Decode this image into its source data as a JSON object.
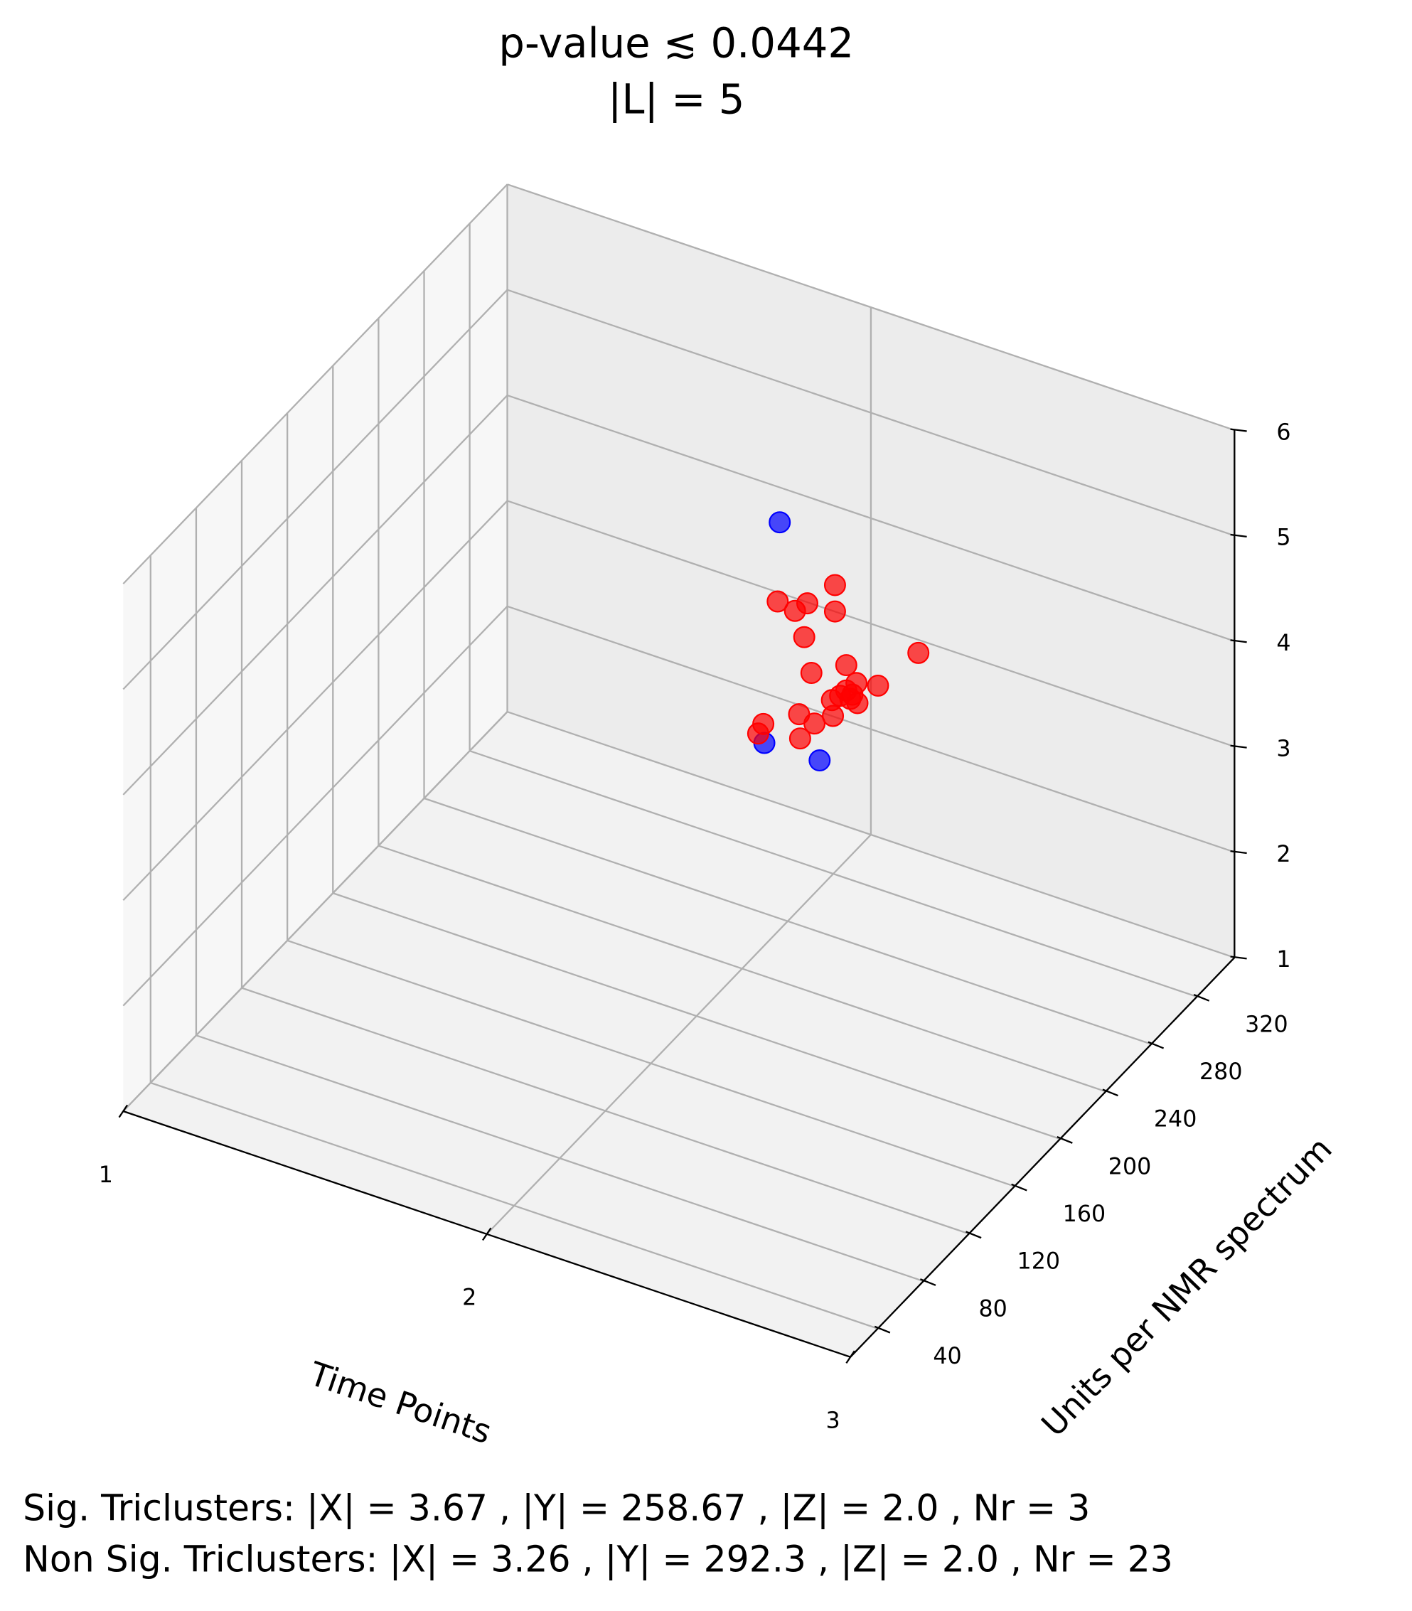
{
  "chart_data": {
    "type": "scatter3d",
    "title": "p-value ≲ 0.0442",
    "subtitle": "|L| = 5",
    "xlabel": "Time Points",
    "ylabel": "Units per NMR spectrum",
    "annotations": [
      "Sig. Triclusters: |X| = 3.67 , |Y| = 258.67 , |Z| = 2.0 , Nr = 3",
      "Non Sig. Triclusters: |X| = 3.26 , |Y| = 292.3 , |Z| = 2.0 , Nr = 23"
    ],
    "xlim": [
      1,
      3
    ],
    "xticks": [
      1,
      2,
      3
    ],
    "ylim": [
      16,
      353
    ],
    "yticks": [
      40,
      80,
      120,
      160,
      200,
      240,
      280,
      320
    ],
    "zlim": [
      1,
      6
    ],
    "zticks": [
      1,
      2,
      3,
      4,
      5,
      6
    ],
    "grid": true,
    "series": [
      {
        "color": "#0000ff",
        "x": [
          2,
          2,
          2
        ],
        "y": [
          273,
          259.5,
          308
        ],
        "z": [
          4.86,
          2.92,
          2.21
        ]
      },
      {
        "color": "#ff0000",
        "x": [
          2,
          2,
          2,
          2,
          2,
          2,
          2.14,
          2,
          2,
          2,
          2.05,
          2,
          2,
          2,
          2,
          2,
          2,
          2,
          2,
          2,
          2,
          2,
          2
        ],
        "y": [
          321.5,
          271.2,
          286.4,
          297.2,
          321.5,
          294.5,
          350,
          331.4,
          300.8,
          340.3,
          343.3,
          331.4,
          326,
          336.8,
          318.8,
          341.2,
          290,
          319.7,
          303.5,
          258.6,
          254.1,
          290.9,
          335
        ],
        "z": [
          3.72,
          4.13,
          3.87,
          3.82,
          3.47,
          3.53,
          2.92,
          2.85,
          3.12,
          2.58,
          2.58,
          2.61,
          2.62,
          2.51,
          2.66,
          2.38,
          2.85,
          2.5,
          2.61,
          3.11,
          3.07,
          2.61,
          2.49
        ]
      }
    ]
  }
}
